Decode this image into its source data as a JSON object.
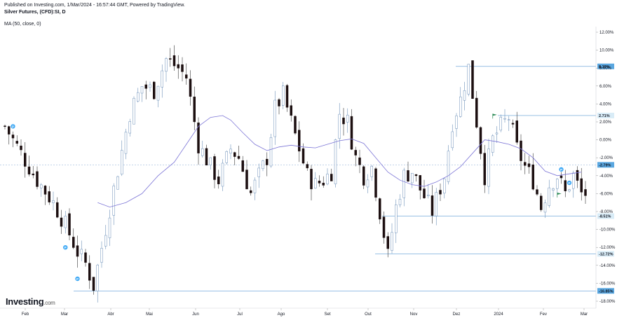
{
  "header": {
    "published": "Published on Investing.com, 1/Mar/2024 - 16:57:44 GMT, Powered by TradingView.",
    "symbol": "Silver Futures, (CFD):SI, D",
    "indicator": "MA (50, close, 0)"
  },
  "brand": {
    "name": "Investing",
    "suffix": ".com"
  },
  "colors": {
    "up": "#ffffff",
    "down": "#1c0f10",
    "wick": "#333333",
    "ma": "#7b74d6",
    "level": "#5b9bd5",
    "crosshair": "#9ab6d9",
    "badge": "#3fa9f5",
    "flag": "#2e8b57"
  },
  "chart_data": {
    "type": "candlestick",
    "y_unit": "%",
    "ylim": [
      -19,
      13
    ],
    "y_ticks": [
      "12.00%",
      "10.00%",
      "8.00%",
      "6.00%",
      "4.00%",
      "2.00%",
      "0.00%",
      "-2.00%",
      "-4.00%",
      "-6.00%",
      "-8.00%",
      "-10.00%",
      "-12.00%",
      "-14.00%",
      "-16.00%",
      "-18.00%"
    ],
    "x_ticks": [
      "Feb",
      "Mar",
      "Abr",
      "Mai",
      "Jun",
      "Jul",
      "Ago",
      "Set",
      "Out",
      "Nov",
      "Dez",
      "2024",
      "Fev",
      "Mar"
    ],
    "levels": [
      {
        "label": "8.19%",
        "value": 8.19,
        "highlight": true
      },
      {
        "label": "2.71%",
        "value": 2.71,
        "highlight": false
      },
      {
        "label": "-2.79%",
        "value": -2.79,
        "highlight": true
      },
      {
        "label": "-8.51%",
        "value": -8.51,
        "highlight": false
      },
      {
        "label": "-12.72%",
        "value": -12.72,
        "highlight": false
      },
      {
        "label": "-16.85%",
        "value": -16.85,
        "highlight": true
      }
    ],
    "close_path": [
      [
        0,
        1.5
      ],
      [
        4,
        -1.5
      ],
      [
        8,
        -4.5
      ],
      [
        12,
        -7
      ],
      [
        15,
        -9.5
      ],
      [
        18,
        -12.5
      ],
      [
        20,
        -13.8
      ],
      [
        22,
        -16.3
      ],
      [
        24,
        -12
      ],
      [
        27,
        -5.5
      ],
      [
        31,
        3
      ],
      [
        34,
        6
      ],
      [
        37,
        5.5
      ],
      [
        40,
        9
      ],
      [
        43,
        8
      ],
      [
        45,
        7
      ],
      [
        48,
        -0.5
      ],
      [
        51,
        -3
      ],
      [
        53,
        -4.5
      ],
      [
        56,
        -1
      ],
      [
        58,
        -2
      ],
      [
        61,
        -6
      ],
      [
        63,
        -4
      ],
      [
        65,
        -2
      ],
      [
        67,
        3.5
      ],
      [
        69,
        5
      ],
      [
        71,
        2
      ],
      [
        73,
        -1
      ],
      [
        75,
        -4
      ],
      [
        77,
        -5
      ],
      [
        79,
        -4.5
      ],
      [
        81,
        -3.5
      ],
      [
        83,
        3
      ],
      [
        85,
        2
      ],
      [
        87,
        -2
      ],
      [
        89,
        -4
      ],
      [
        91,
        -3
      ],
      [
        93,
        -8
      ],
      [
        95,
        -13
      ],
      [
        97,
        -7.5
      ],
      [
        99,
        -4
      ],
      [
        101,
        -3.5
      ],
      [
        103,
        -5.5
      ],
      [
        106,
        -8
      ],
      [
        109,
        -4
      ],
      [
        111,
        2
      ],
      [
        113,
        4.5
      ],
      [
        115,
        8.1
      ],
      [
        117,
        2
      ],
      [
        119,
        -4
      ],
      [
        121,
        0
      ],
      [
        123,
        1.5
      ],
      [
        125,
        2.5
      ],
      [
        127,
        -1
      ],
      [
        129,
        -3
      ],
      [
        131,
        -4.5
      ],
      [
        133,
        -7.5
      ],
      [
        135,
        -5
      ],
      [
        137,
        -4
      ],
      [
        139,
        -6
      ],
      [
        141,
        -4
      ],
      [
        143,
        -6
      ]
    ],
    "ma_path": [
      [
        23,
        -7
      ],
      [
        26,
        -7.5
      ],
      [
        30,
        -7
      ],
      [
        34,
        -6
      ],
      [
        38,
        -4
      ],
      [
        42,
        -2.5
      ],
      [
        45,
        -0.5
      ],
      [
        48,
        1.5
      ],
      [
        51,
        2.5
      ],
      [
        54,
        2.7
      ],
      [
        56,
        2.2
      ],
      [
        59,
        0.8
      ],
      [
        62,
        -0.5
      ],
      [
        65,
        -1.2
      ],
      [
        68,
        -0.8
      ],
      [
        71,
        -0.6
      ],
      [
        74,
        -0.8
      ],
      [
        77,
        -0.9
      ],
      [
        80,
        -0.5
      ],
      [
        83,
        -0.1
      ],
      [
        86,
        0.1
      ],
      [
        89,
        -0.4
      ],
      [
        92,
        -2
      ],
      [
        95,
        -3.6
      ],
      [
        98,
        -4.5
      ],
      [
        101,
        -5
      ],
      [
        104,
        -5.2
      ],
      [
        107,
        -4.7
      ],
      [
        110,
        -4
      ],
      [
        113,
        -3
      ],
      [
        116,
        -1.5
      ],
      [
        119,
        0
      ],
      [
        122,
        -0.2
      ],
      [
        125,
        -0.5
      ],
      [
        128,
        -1
      ],
      [
        131,
        -2
      ],
      [
        134,
        -3.5
      ],
      [
        137,
        -4
      ],
      [
        140,
        -3.8
      ],
      [
        143,
        -3.6
      ]
    ],
    "badges": [
      {
        "i": 2,
        "v": 1.5,
        "type": "P"
      },
      {
        "i": 15,
        "v": -12,
        "type": "P"
      },
      {
        "i": 18,
        "v": -15.5,
        "type": "P"
      },
      {
        "i": 138,
        "v": -3.3,
        "type": "P"
      },
      {
        "i": 140,
        "v": -4.8,
        "type": "P"
      }
    ],
    "flags": [
      {
        "i": 121,
        "v": 2.6
      },
      {
        "i": 137,
        "v": -6.2
      }
    ],
    "candle_count": 145
  }
}
